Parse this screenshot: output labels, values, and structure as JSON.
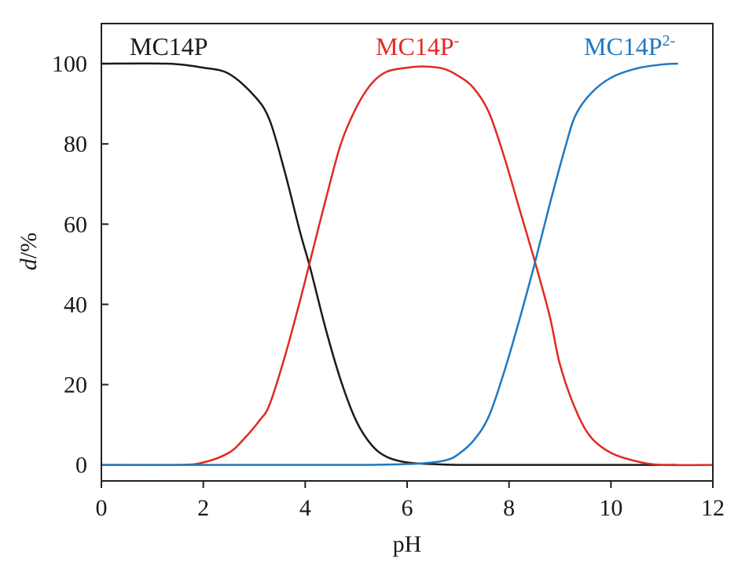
{
  "chart_data": {
    "type": "line",
    "title": "",
    "xlabel": "pH",
    "ylabel": "d/%",
    "ylabel_parts": {
      "italic": "d",
      "rest": "/%"
    },
    "xlim": [
      0,
      12
    ],
    "ylim": [
      -4,
      110
    ],
    "xticks": [
      0,
      2,
      4,
      6,
      8,
      10,
      12
    ],
    "yticks": [
      0,
      20,
      40,
      60,
      80,
      100
    ],
    "grid": false,
    "series": [
      {
        "name": "MC14P",
        "label_text": "MC14P",
        "label_sup": "",
        "color": "#1a1a1a",
        "x": [
          0,
          1.3,
          2.0,
          2.5,
          3.0,
          3.3,
          3.6,
          3.9,
          4.1,
          4.4,
          4.7,
          5.0,
          5.3,
          5.6,
          6.0,
          6.5,
          7.0,
          8.0,
          9.0,
          10.0,
          11.3
        ],
        "y": [
          100,
          100,
          99,
          97.5,
          92,
          86,
          73,
          58,
          49,
          34,
          21,
          11,
          5,
          2,
          0.6,
          0.2,
          0,
          0,
          0,
          0,
          0
        ]
      },
      {
        "name": "MC14P-",
        "label_text": "MC14P",
        "label_sup": "-",
        "color": "#e02a22",
        "x": [
          0,
          1.5,
          2.0,
          2.5,
          2.8,
          3.1,
          3.3,
          3.6,
          3.9,
          4.1,
          4.4,
          4.7,
          5.0,
          5.3,
          5.6,
          6.0,
          6.3,
          6.7,
          7.0,
          7.3,
          7.6,
          7.9,
          8.2,
          8.5,
          8.8,
          9.0,
          9.3,
          9.6,
          10.0,
          10.5,
          11.0,
          12.0
        ],
        "y": [
          0,
          0,
          0.6,
          3,
          6.5,
          11,
          15,
          27,
          41,
          51,
          66,
          80,
          89,
          95,
          98,
          99,
          99.3,
          98.8,
          97,
          94,
          88,
          77,
          64,
          51,
          37,
          25,
          14,
          7,
          3,
          0.9,
          0,
          0
        ]
      },
      {
        "name": "MC14P2-",
        "label_text": "MC14P",
        "label_sup": "2-",
        "color": "#1f78c1",
        "x": [
          0,
          1.0,
          3.0,
          5.0,
          6.0,
          6.5,
          6.8,
          7.0,
          7.3,
          7.6,
          7.9,
          8.2,
          8.5,
          8.8,
          9.1,
          9.3,
          9.6,
          10.0,
          10.5,
          11.0,
          11.3
        ],
        "y": [
          0,
          0,
          0,
          0,
          0.2,
          0.6,
          1.3,
          2.6,
          6,
          12,
          23,
          36,
          50,
          65,
          79,
          87,
          92.5,
          96.5,
          98.8,
          99.8,
          100
        ]
      }
    ]
  }
}
